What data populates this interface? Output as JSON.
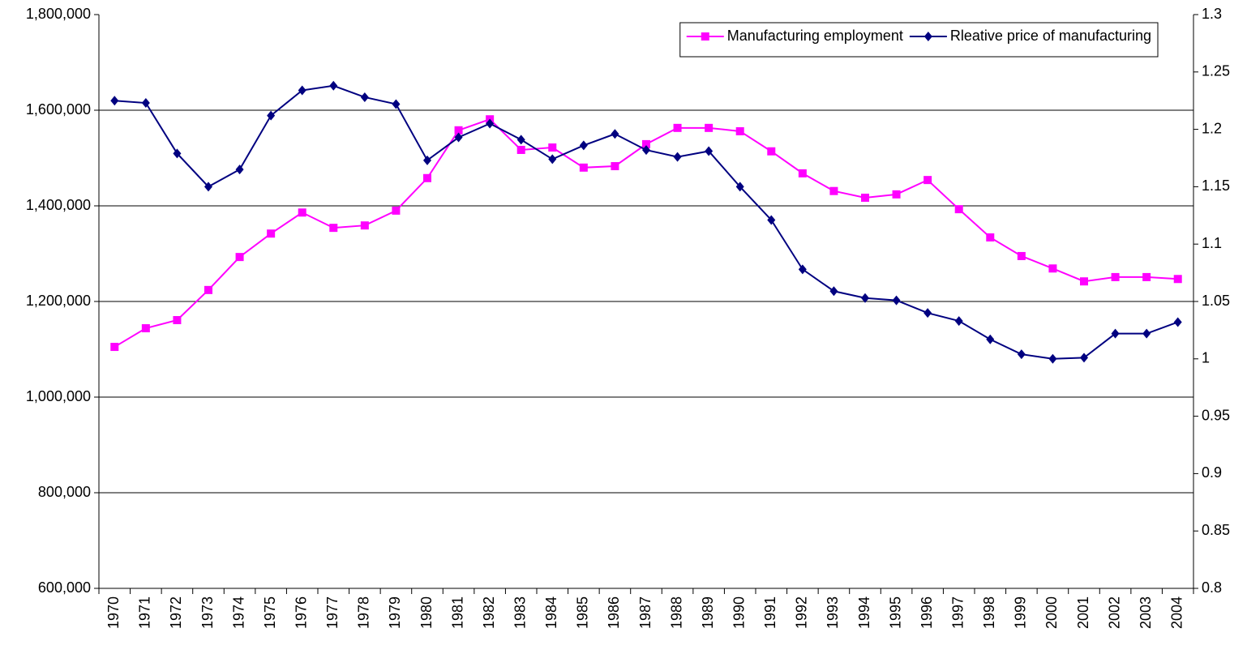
{
  "chart_data": {
    "type": "line",
    "categories": [
      "1970",
      "1971",
      "1972",
      "1973",
      "1974",
      "1975",
      "1976",
      "1977",
      "1978",
      "1979",
      "1980",
      "1981",
      "1982",
      "1983",
      "1984",
      "1985",
      "1986",
      "1987",
      "1988",
      "1989",
      "1990",
      "1991",
      "1992",
      "1993",
      "1994",
      "1995",
      "1996",
      "1997",
      "1998",
      "1999",
      "2000",
      "2001",
      "2002",
      "2003",
      "2004"
    ],
    "series": [
      {
        "name": "Manufacturing employment",
        "color": "#ff00ff",
        "marker": "square",
        "values": [
          1105000,
          1144000,
          1161000,
          1224000,
          1293000,
          1342000,
          1386000,
          1354000,
          1359000,
          1390000,
          1458000,
          1558000,
          1581000,
          1517000,
          1522000,
          1480000,
          1483000,
          1529000,
          1563000,
          1563000,
          1556000,
          1514000,
          1468000,
          1431000,
          1417000,
          1424000,
          1454000,
          1393000,
          1334000,
          1295000,
          1269000,
          1242000,
          1251000,
          1251000,
          1247000
        ]
      },
      {
        "name": "Rleative price of manufacturing",
        "color": "#000080",
        "marker": "diamond",
        "axis": "y2",
        "values": [
          1.225,
          1.223,
          1.179,
          1.15,
          1.165,
          1.212,
          1.234,
          1.238,
          1.228,
          1.222,
          1.173,
          1.193,
          1.205,
          1.191,
          1.174,
          1.186,
          1.196,
          1.182,
          1.176,
          1.181,
          1.15,
          1.121,
          1.078,
          1.059,
          1.053,
          1.051,
          1.04,
          1.033,
          1.017,
          1.004,
          1.0,
          1.001,
          1.022,
          1.022,
          1.032
        ]
      }
    ],
    "ylim": [
      600000,
      1800000
    ],
    "yticks": [
      {
        "value": 600000,
        "label": "600,000"
      },
      {
        "value": 800000,
        "label": "800,000"
      },
      {
        "value": 1000000,
        "label": "1,000,000"
      },
      {
        "value": 1200000,
        "label": "1,200,000"
      },
      {
        "value": 1400000,
        "label": "1,400,000"
      },
      {
        "value": 1600000,
        "label": "1,600,000"
      },
      {
        "value": 1800000,
        "label": "1,800,000"
      }
    ],
    "y2lim": [
      0.8,
      1.3
    ],
    "y2ticks": [
      0.8,
      0.85,
      0.9,
      0.95,
      1,
      1.05,
      1.1,
      1.15,
      1.2,
      1.25,
      1.3
    ],
    "grid": true,
    "legend": "top-right"
  }
}
